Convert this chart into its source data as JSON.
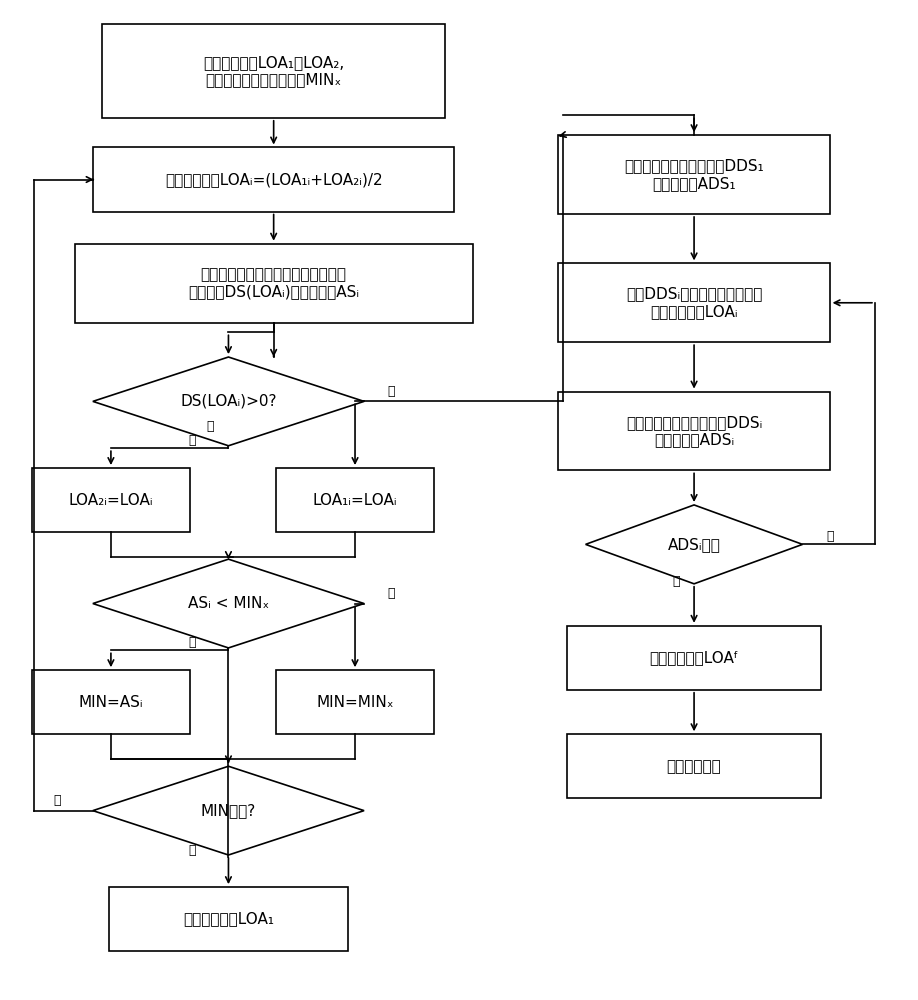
{
  "bg_color": "#ffffff",
  "line_color": "#000000",
  "box_color": "#ffffff",
  "text_color": "#000000",
  "fig_width": 9.18,
  "fig_height": 10.0,
  "font_size": 11,
  "small_font_size": 9,
  "texts": {
    "start": "输入初始射角LOA₁与LOA₂,\n以及与目标射程的距离差MINₓ",
    "calc1": "计算平均射角LOAᵢ=(LOA₁ᵢ+LOA₂ᵢ)/2",
    "calc2": "计算平均射角对应的射程与目标射程\n的距离差DS(LOAᵢ)及其绝对值ASᵢ",
    "diamond1": "DS(LOAᵢ)>0?",
    "box_loa2": "LOA₂ᵢ=LOAᵢ",
    "box_loa1": "LOA₁ᵢ=LOAᵢ",
    "diamond2": "ASᵢ < MINₓ",
    "box_min_as": "MIN=ASᵢ",
    "box_min_x": "MIN=MINₓ",
    "diamond3": "MIN最小?",
    "box_out1": "输出初始射角LOA₁",
    "right_calc1": "计算与目标射程的距离差DDS₁\n及其绝对值ADS₁",
    "right_calc2": "根据DDSᵢ确定合适的步长，并\n重新计算射角LOAᵢ",
    "right_calc3": "计算与目标射程的距离差DDSᵢ\n及其绝对值ADSᵢ",
    "right_diamond": "ADSᵢ最小",
    "right_out": "输出最终射角LOAᶠ",
    "right_calc4": "计算侧向偏差",
    "yes": "是",
    "no": "否"
  }
}
